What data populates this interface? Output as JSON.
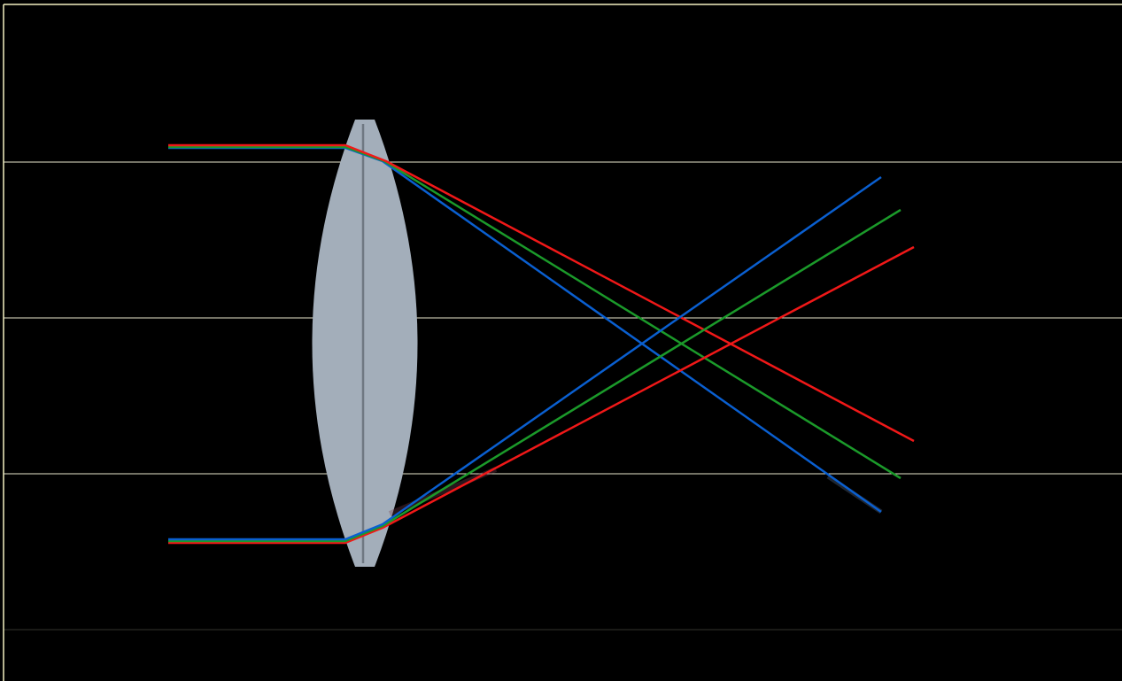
{
  "figure": {
    "background": "#000000",
    "frame_color": "#f2f0c0",
    "guide_line_color": "#e8e6cc",
    "lens": {
      "fill": "#a3aeba",
      "axis_color": "#6f7882"
    },
    "rays": [
      {
        "color": "#0a5fd0",
        "meaning": "blue"
      },
      {
        "color": "#1b9a2a",
        "meaning": "green"
      },
      {
        "color": "#f01818",
        "meaning": "red"
      }
    ]
  }
}
